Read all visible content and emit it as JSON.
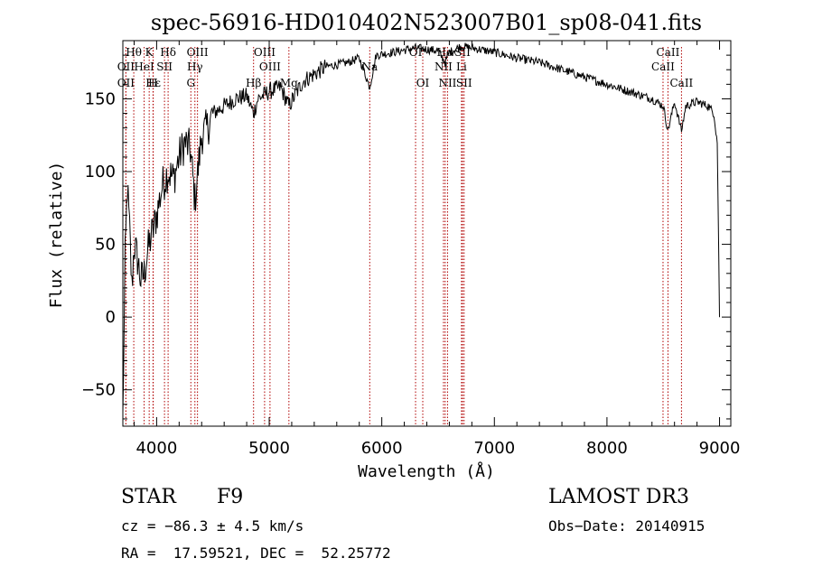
{
  "chart_data": {
    "type": "line",
    "title": "spec-56916-HD010402N523007B01_sp08-041.fits",
    "xlabel": "Wavelength (Å)",
    "ylabel": "Flux (relative)",
    "xlim": [
      3700,
      9100
    ],
    "ylim": [
      -75,
      190
    ],
    "xticks": [
      4000,
      5000,
      6000,
      7000,
      8000,
      9000
    ],
    "yticks": [
      -50,
      0,
      50,
      100,
      150
    ],
    "x_minor_step": 200,
    "y_minor_step": 10,
    "series": [
      {
        "name": "spectrum",
        "x": [
          3700,
          3720,
          3740,
          3760,
          3780,
          3800,
          3830,
          3860,
          3890,
          3920,
          3950,
          3970,
          4000,
          4050,
          4100,
          4150,
          4200,
          4250,
          4300,
          4340,
          4400,
          4450,
          4500,
          4600,
          4700,
          4800,
          4861,
          4900,
          5000,
          5100,
          5175,
          5300,
          5500,
          5700,
          5800,
          5893,
          5950,
          6100,
          6300,
          6400,
          6500,
          6563,
          6600,
          6700,
          6800,
          7000,
          7200,
          7400,
          7600,
          7800,
          8000,
          8200,
          8400,
          8500,
          8542,
          8600,
          8662,
          8700,
          8800,
          8900,
          8950,
          8980,
          9000
        ],
        "y": [
          -70,
          40,
          90,
          60,
          20,
          50,
          40,
          25,
          30,
          45,
          55,
          60,
          70,
          90,
          100,
          95,
          110,
          120,
          115,
          80,
          125,
          130,
          140,
          145,
          150,
          152,
          140,
          150,
          155,
          158,
          145,
          162,
          172,
          175,
          178,
          158,
          180,
          182,
          185,
          184,
          183,
          175,
          182,
          186,
          185,
          182,
          178,
          175,
          170,
          165,
          160,
          155,
          150,
          145,
          128,
          148,
          128,
          145,
          148,
          145,
          140,
          120,
          0
        ]
      }
    ],
    "line_markers": [
      {
        "label": "Hθ",
        "wavelength": 3797,
        "row": 1
      },
      {
        "label": "OII",
        "wavelength": 3727,
        "row": 2
      },
      {
        "label": "OII",
        "wavelength": 3727,
        "row": 3
      },
      {
        "label": "K",
        "wavelength": 3934,
        "row": 1
      },
      {
        "label": "HeI",
        "wavelength": 3889,
        "row": 2
      },
      {
        "label": "Hε",
        "wavelength": 3970,
        "row": 3
      },
      {
        "label": "SII",
        "wavelength": 4070,
        "row": 2
      },
      {
        "label": "H",
        "wavelength": 3968,
        "row": 3
      },
      {
        "label": "Hδ",
        "wavelength": 4102,
        "row": 1
      },
      {
        "label": "OIII",
        "wavelength": 4363,
        "row": 1
      },
      {
        "label": "Hγ",
        "wavelength": 4340,
        "row": 2
      },
      {
        "label": "G",
        "wavelength": 4304,
        "row": 3
      },
      {
        "label": "OIII",
        "wavelength": 4959,
        "row": 1
      },
      {
        "label": "OIII",
        "wavelength": 5007,
        "row": 2
      },
      {
        "label": "Hβ",
        "wavelength": 4861,
        "row": 3
      },
      {
        "label": "Mg",
        "wavelength": 5175,
        "row": 3
      },
      {
        "label": "Na",
        "wavelength": 5893,
        "row": 2
      },
      {
        "label": "OI",
        "wavelength": 6300,
        "row": 1
      },
      {
        "label": "OI",
        "wavelength": 6364,
        "row": 3
      },
      {
        "label": "Hα",
        "wavelength": 6563,
        "row": 1
      },
      {
        "label": "SII",
        "wavelength": 6717,
        "row": 1
      },
      {
        "label": "NII",
        "wavelength": 6548,
        "row": 2
      },
      {
        "label": "Li",
        "wavelength": 6708,
        "row": 2
      },
      {
        "label": "NII",
        "wavelength": 6584,
        "row": 3
      },
      {
        "label": "SII",
        "wavelength": 6731,
        "row": 3
      },
      {
        "label": "CaII",
        "wavelength": 8542,
        "row": 1
      },
      {
        "label": "CaII",
        "wavelength": 8498,
        "row": 2
      },
      {
        "label": "CaII",
        "wavelength": 8662,
        "row": 3
      }
    ]
  },
  "info": {
    "class": "STAR",
    "subclass": "F9",
    "survey": "LAMOST DR3",
    "cz": "cz = −86.3 ± 4.5 km/s",
    "obs_date": "Obs−Date: 20140915",
    "coords": "RA =  17.59521, DEC =  52.25772"
  }
}
